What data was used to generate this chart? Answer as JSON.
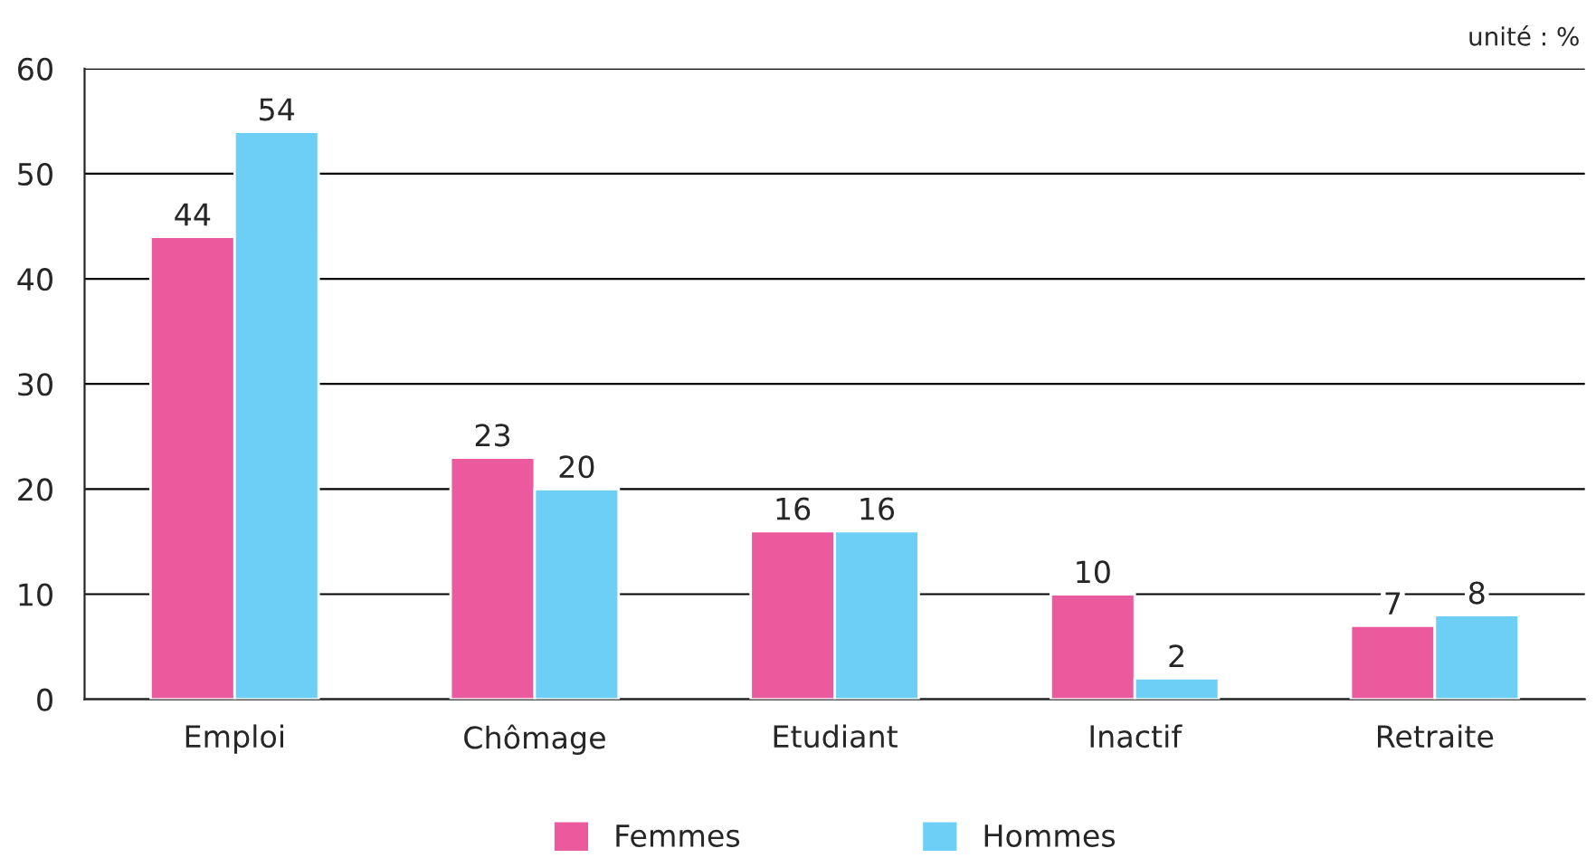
{
  "chart_data": {
    "type": "bar",
    "categories": [
      "Emploi",
      "Chômage",
      "Etudiant",
      "Inactif",
      "Retraite"
    ],
    "series": [
      {
        "name": "Femmes",
        "color": "#ec5a9e",
        "values": [
          44,
          23,
          16,
          10,
          7
        ]
      },
      {
        "name": "Hommes",
        "color": "#6dcff6",
        "values": [
          54,
          20,
          16,
          2,
          8
        ]
      }
    ],
    "ylim": [
      0,
      60
    ],
    "yticks": [
      0,
      10,
      20,
      30,
      40,
      50,
      60
    ],
    "grid": "y",
    "legend": "bottom",
    "data_labels": true,
    "annotations": [
      "unité : %"
    ]
  }
}
